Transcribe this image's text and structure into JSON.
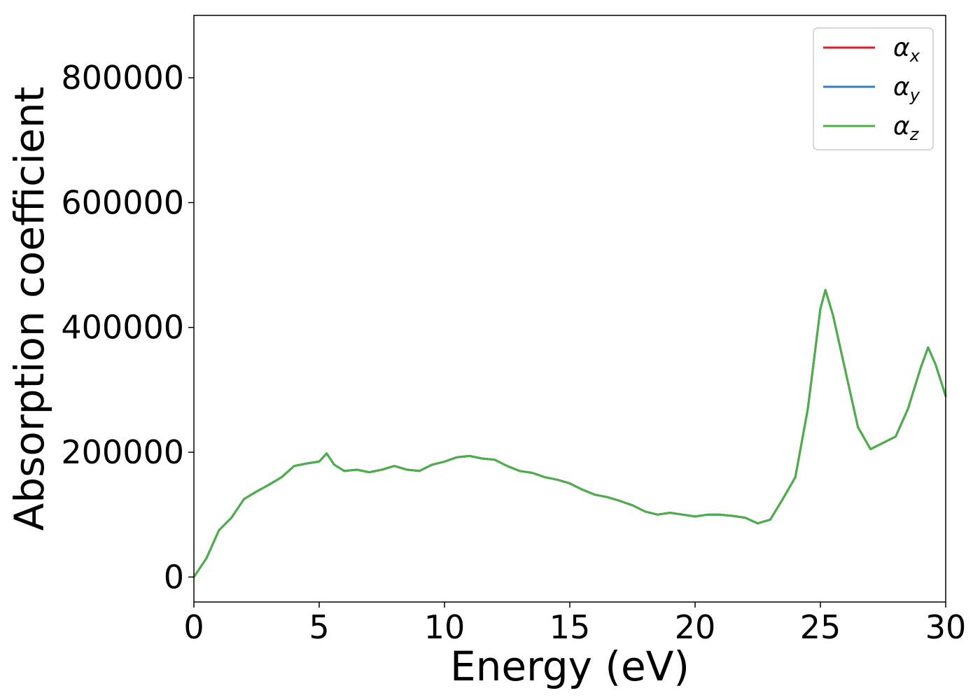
{
  "chart_data": {
    "type": "line",
    "xlabel": "Energy (eV)",
    "ylabel": "Absorption coefficient",
    "xlim": [
      0,
      30
    ],
    "ylim": [
      -40000,
      900000
    ],
    "xticks": [
      0,
      5,
      10,
      15,
      20,
      25,
      30
    ],
    "yticks": [
      0,
      200000,
      400000,
      600000,
      800000
    ],
    "grid": false,
    "legend_position": "top-right",
    "series": [
      {
        "name": "αx",
        "legend_symbol": "α",
        "legend_subscript": "x",
        "color": "#e41a1c",
        "x": [
          0,
          0.5,
          1.0,
          1.5,
          2.0,
          2.5,
          3.0,
          3.5,
          4.0,
          4.5,
          5.0,
          5.3,
          5.6,
          6.0,
          6.5,
          7.0,
          7.5,
          8.0,
          8.5,
          9.0,
          9.5,
          10.0,
          10.5,
          11.0,
          11.5,
          12.0,
          12.5,
          13.0,
          13.5,
          14.0,
          14.5,
          15.0,
          15.5,
          16.0,
          16.5,
          17.0,
          17.5,
          18.0,
          18.5,
          19.0,
          19.5,
          20.0,
          20.5,
          21.0,
          21.5,
          22.0,
          22.5,
          23.0,
          23.5,
          24.0,
          24.5,
          25.0,
          25.2,
          25.5,
          26.0,
          26.5,
          27.0,
          27.5,
          28.0,
          28.5,
          29.0,
          29.3,
          29.6,
          30.0
        ],
        "y": [
          0,
          30000,
          75000,
          95000,
          125000,
          137000,
          148000,
          160000,
          178000,
          182000,
          185000,
          198000,
          180000,
          170000,
          172000,
          168000,
          172000,
          178000,
          172000,
          170000,
          180000,
          185000,
          192000,
          194000,
          190000,
          188000,
          178000,
          170000,
          167000,
          160000,
          156000,
          150000,
          140000,
          132000,
          128000,
          122000,
          115000,
          105000,
          100000,
          103000,
          100000,
          97000,
          100000,
          100000,
          98000,
          95000,
          86000,
          92000,
          125000,
          160000,
          270000,
          430000,
          460000,
          420000,
          330000,
          240000,
          205000,
          215000,
          225000,
          270000,
          335000,
          368000,
          340000,
          290000
        ]
      },
      {
        "name": "αy",
        "legend_symbol": "α",
        "legend_subscript": "y",
        "color": "#377eb8",
        "x": [
          0,
          0.5,
          1.0,
          1.5,
          2.0,
          2.5,
          3.0,
          3.5,
          4.0,
          4.5,
          5.0,
          5.3,
          5.6,
          6.0,
          6.5,
          7.0,
          7.5,
          8.0,
          8.5,
          9.0,
          9.5,
          10.0,
          10.5,
          11.0,
          11.5,
          12.0,
          12.5,
          13.0,
          13.5,
          14.0,
          14.5,
          15.0,
          15.5,
          16.0,
          16.5,
          17.0,
          17.5,
          18.0,
          18.5,
          19.0,
          19.5,
          20.0,
          20.5,
          21.0,
          21.5,
          22.0,
          22.5,
          23.0,
          23.5,
          24.0,
          24.5,
          25.0,
          25.2,
          25.5,
          26.0,
          26.5,
          27.0,
          27.5,
          28.0,
          28.5,
          29.0,
          29.3,
          29.6,
          30.0
        ],
        "y": [
          0,
          30000,
          75000,
          95000,
          125000,
          137000,
          148000,
          160000,
          178000,
          182000,
          185000,
          198000,
          180000,
          170000,
          172000,
          168000,
          172000,
          178000,
          172000,
          170000,
          180000,
          185000,
          192000,
          194000,
          190000,
          188000,
          178000,
          170000,
          167000,
          160000,
          156000,
          150000,
          140000,
          132000,
          128000,
          122000,
          115000,
          105000,
          100000,
          103000,
          100000,
          97000,
          100000,
          100000,
          98000,
          95000,
          86000,
          92000,
          125000,
          160000,
          270000,
          430000,
          460000,
          420000,
          330000,
          240000,
          205000,
          215000,
          225000,
          270000,
          335000,
          368000,
          340000,
          290000
        ]
      },
      {
        "name": "αz",
        "legend_symbol": "α",
        "legend_subscript": "z",
        "color": "#4daf4a",
        "x": [
          0,
          0.5,
          1.0,
          1.5,
          2.0,
          2.5,
          3.0,
          3.5,
          4.0,
          4.5,
          5.0,
          5.3,
          5.6,
          6.0,
          6.5,
          7.0,
          7.5,
          8.0,
          8.5,
          9.0,
          9.5,
          10.0,
          10.5,
          11.0,
          11.5,
          12.0,
          12.5,
          13.0,
          13.5,
          14.0,
          14.5,
          15.0,
          15.5,
          16.0,
          16.5,
          17.0,
          17.5,
          18.0,
          18.5,
          19.0,
          19.5,
          20.0,
          20.5,
          21.0,
          21.5,
          22.0,
          22.5,
          23.0,
          23.5,
          24.0,
          24.5,
          25.0,
          25.2,
          25.5,
          26.0,
          26.5,
          27.0,
          27.5,
          28.0,
          28.5,
          29.0,
          29.3,
          29.6,
          30.0
        ],
        "y": [
          0,
          30000,
          75000,
          95000,
          125000,
          137000,
          148000,
          160000,
          178000,
          182000,
          185000,
          198000,
          180000,
          170000,
          172000,
          168000,
          172000,
          178000,
          172000,
          170000,
          180000,
          185000,
          192000,
          194000,
          190000,
          188000,
          178000,
          170000,
          167000,
          160000,
          156000,
          150000,
          140000,
          132000,
          128000,
          122000,
          115000,
          105000,
          100000,
          103000,
          100000,
          97000,
          100000,
          100000,
          98000,
          95000,
          86000,
          92000,
          125000,
          160000,
          270000,
          430000,
          460000,
          420000,
          330000,
          240000,
          205000,
          215000,
          225000,
          270000,
          335000,
          368000,
          340000,
          290000
        ]
      }
    ]
  }
}
